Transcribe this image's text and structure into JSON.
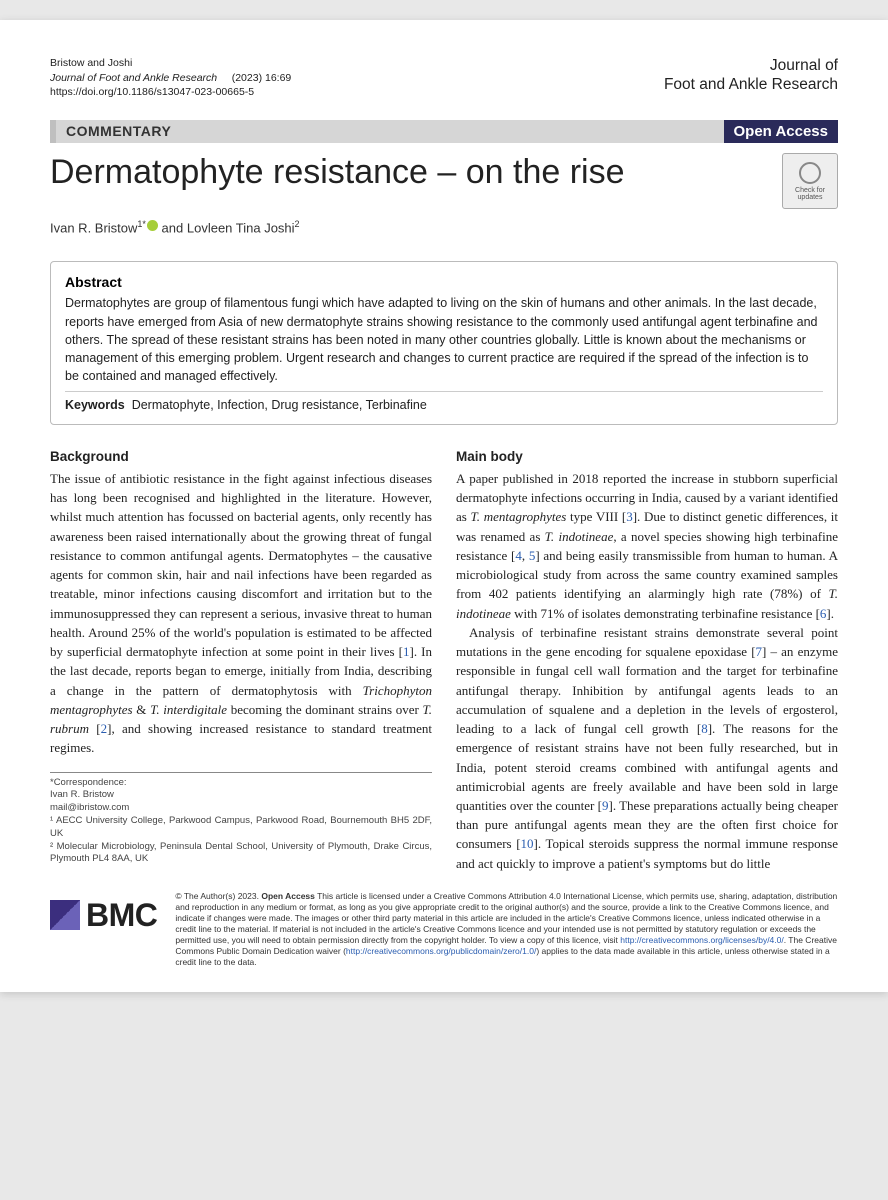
{
  "header": {
    "authors_short": "Bristow and Joshi",
    "journal_italic": "Journal of Foot and Ankle Research",
    "year_vol": "(2023) 16:69",
    "doi": "https://doi.org/10.1186/s13047-023-00665-5",
    "journal_right_1": "Journal of",
    "journal_right_2": "Foot and Ankle Research"
  },
  "banner": {
    "type": "COMMENTARY",
    "access": "Open Access"
  },
  "title": "Dermatophyte resistance – on the rise",
  "check_updates": "Check for updates",
  "authors_line": {
    "a1": "Ivan R. Bristow",
    "a1_sup": "1*",
    "and": " and ",
    "a2": "Lovleen Tina Joshi",
    "a2_sup": "2"
  },
  "abstract": {
    "heading": "Abstract",
    "text": "Dermatophytes are group of filamentous fungi which have adapted to living on the skin of humans and other animals. In the last decade, reports have emerged from Asia of new dermatophyte strains showing resistance to the commonly used antifungal agent terbinafine and others. The spread of these resistant strains has been noted in many other countries globally. Little is known about the mechanisms or management of this emerging problem. Urgent research and changes to current practice are required if the spread of the infection is to be contained and managed effectively.",
    "keywords_label": "Keywords",
    "keywords": "Dermatophyte, Infection, Drug resistance, Terbinafine"
  },
  "body": {
    "left": {
      "heading": "Background",
      "p1a": "The issue of antibiotic resistance in the fight against infectious diseases has long been recognised and highlighted in the literature. However, whilst much attention has focussed on bacterial agents, only recently has awareness been raised internationally about the growing threat of fungal resistance to common antifungal agents. Dermatophytes – the causative agents for common skin, hair and nail infections have been regarded as treatable, minor infections causing discomfort and irritation but to the immunosuppressed they can represent a serious, invasive threat to human health. Around 25% of the world's population is estimated to be affected by superficial dermatophyte infection at some point in their lives [",
      "r1": "1",
      "p1b": "]. In the last decade, reports began to emerge, initially from India, describing a change in the pattern of dermatophytosis with ",
      "it1": "Trichophyton mentagrophytes",
      "p1c": " & ",
      "it2": "T. interdigitale",
      "p1d": " becoming the dominant strains over ",
      "it3": "T. rubrum",
      "p1e": " [",
      "r2": "2",
      "p1f": "], and showing increased resistance to standard treatment regimes."
    },
    "right": {
      "heading": "Main body",
      "p1a": "A paper published in 2018 reported the increase in stubborn superficial dermatophyte infections occurring in India, caused by a variant identified as ",
      "it1": "T. mentagrophytes",
      "p1b": " type VIII [",
      "r3": "3",
      "p1c": "]. Due to distinct genetic differences, it was renamed as ",
      "it2": "T. indotineae",
      "p1d": ", a novel species showing high terbinafine resistance [",
      "r4": "4",
      "p1e": ", ",
      "r5": "5",
      "p1f": "] and being easily transmissible from human to human. A microbiological study from across the same country examined samples from 402 patients identifying an alarmingly high rate (78%) of ",
      "it3": "T. indotineae",
      "p1g": " with 71% of isolates demonstrating terbinafine resistance [",
      "r6": "6",
      "p1h": "].",
      "p2a": "Analysis of terbinafine resistant strains demonstrate several point mutations in the gene encoding for squalene epoxidase [",
      "r7": "7",
      "p2b": "] – an enzyme responsible in fungal cell wall formation and the target for terbinafine antifungal therapy. Inhibition by antifungal agents leads to an accumulation of squalene and a depletion in the levels of ergosterol, leading to a lack of fungal cell growth [",
      "r8": "8",
      "p2c": "]. The reasons for the emergence of resistant strains have not been fully researched, but in India, potent steroid creams combined with antifungal agents and antimicrobial agents are freely available and have been sold in large quantities over the counter [",
      "r9": "9",
      "p2d": "]. These preparations actually being cheaper than pure antifungal agents mean they are the often first choice for consumers [",
      "r10": "10",
      "p2e": "]. Topical steroids suppress the normal immune response and act quickly to improve a patient's symptoms but do little"
    }
  },
  "correspondence": {
    "star": "*Correspondence:",
    "name": "Ivan R. Bristow",
    "email": "mail@ibristow.com",
    "aff1": "¹ AECC University College, Parkwood Campus, Parkwood Road, Bournemouth BH5 2DF, UK",
    "aff2": "² Molecular Microbiology, Peninsula Dental School, University of Plymouth, Drake Circus, Plymouth PL4 8AA, UK"
  },
  "footer": {
    "bmc": "BMC",
    "lic1": "© The Author(s) 2023. ",
    "lic_open": "Open Access",
    "lic2": " This article is licensed under a Creative Commons Attribution 4.0 International License, which permits use, sharing, adaptation, distribution and reproduction in any medium or format, as long as you give appropriate credit to the original author(s) and the source, provide a link to the Creative Commons licence, and indicate if changes were made. The images or other third party material in this article are included in the article's Creative Commons licence, unless indicated otherwise in a credit line to the material. If material is not included in the article's Creative Commons licence and your intended use is not permitted by statutory regulation or exceeds the permitted use, you will need to obtain permission directly from the copyright holder. To view a copy of this licence, visit ",
    "lic_link1": "http://creativecommons.org/licenses/by/4.0/",
    "lic3": ". The Creative Commons Public Domain Dedication waiver (",
    "lic_link2": "http://creativecommons.org/publicdomain/zero/1.0/",
    "lic4": ") applies to the data made available in this article, unless otherwise stated in a credit line to the data."
  }
}
